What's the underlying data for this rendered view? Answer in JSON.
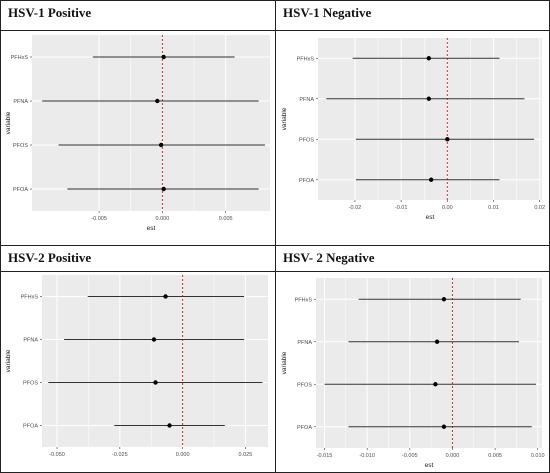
{
  "chart_data": [
    {
      "type": "scatter",
      "panel_title": "HSV-1 Positive",
      "categories": [
        "PFHxS",
        "PFNA",
        "PFOS",
        "PFOA"
      ],
      "estimates": [
        0.0001,
        -0.0004,
        -0.0001,
        0.0001
      ],
      "ci_low": [
        -0.0055,
        -0.0095,
        -0.0082,
        -0.0075
      ],
      "ci_high": [
        0.0057,
        0.0076,
        0.0081,
        0.0076
      ],
      "reference_line": 0,
      "xlim": [
        -0.0103,
        0.0085
      ],
      "xticks": [
        -0.005,
        0.0,
        0.005
      ],
      "xtick_labels": [
        "-0.005",
        "0.000",
        "0.005"
      ],
      "xlabel": "est",
      "ylabel": "variable",
      "grid": true
    },
    {
      "type": "scatter",
      "panel_title": "HSV-1 Negative",
      "categories": [
        "PFHxS",
        "PFNA",
        "PFOS",
        "PFOA"
      ],
      "estimates": [
        -0.004,
        -0.004,
        0.0,
        -0.0035
      ],
      "ci_low": [
        -0.0205,
        -0.0262,
        -0.0198,
        -0.0198
      ],
      "ci_high": [
        0.0113,
        0.0167,
        0.0188,
        0.0113
      ],
      "reference_line": 0,
      "xlim": [
        -0.028,
        0.0205
      ],
      "xticks": [
        -0.02,
        -0.01,
        0.0,
        0.01,
        0.02
      ],
      "xtick_labels": [
        "-0.02",
        "-0.01",
        "0.00",
        "0.01",
        "0.02"
      ],
      "xlabel": "est",
      "ylabel": "variable",
      "grid": true
    },
    {
      "type": "scatter",
      "panel_title": "HSV-2 Positive",
      "categories": [
        "PFHxS",
        "PFNA",
        "PFOS",
        "PFOA"
      ],
      "estimates": [
        -0.0068,
        -0.0114,
        -0.0108,
        -0.0052
      ],
      "ci_low": [
        -0.0378,
        -0.0472,
        -0.0535,
        -0.0272
      ],
      "ci_high": [
        0.0245,
        0.0245,
        0.0318,
        0.0168
      ],
      "reference_line": 0,
      "xlim": [
        -0.056,
        0.034
      ],
      "xticks": [
        -0.05,
        -0.025,
        0.0,
        0.025
      ],
      "xtick_labels": [
        "-0.050",
        "-0.025",
        "0.000",
        "0.025"
      ],
      "xlabel": "",
      "ylabel": "variable",
      "grid": true
    },
    {
      "type": "scatter",
      "panel_title": "HSV- 2 Negative",
      "categories": [
        "PFHxS",
        "PFNA",
        "PFOS",
        "PFOA"
      ],
      "estimates": [
        -0.001,
        -0.0018,
        -0.002,
        -0.001
      ],
      "ci_low": [
        -0.011,
        -0.0122,
        -0.015,
        -0.0122
      ],
      "ci_high": [
        0.008,
        0.0078,
        0.0098,
        0.0093
      ],
      "reference_line": 0,
      "xlim": [
        -0.016,
        0.0105
      ],
      "xticks": [
        -0.015,
        -0.01,
        -0.005,
        0.0,
        0.005,
        0.01
      ],
      "xtick_labels": [
        "-0.015",
        "-0.010",
        "-0.005",
        "0.000",
        "0.005",
        "0.010"
      ],
      "xlabel": "est",
      "ylabel": "variable",
      "grid": true
    }
  ],
  "colors": {
    "panel_bg": "#ebebeb",
    "gridline": "#ffffff",
    "errorbar": "#333333",
    "point": "#000000",
    "reference_line": "#d62728",
    "text": "#4d4d4d"
  }
}
